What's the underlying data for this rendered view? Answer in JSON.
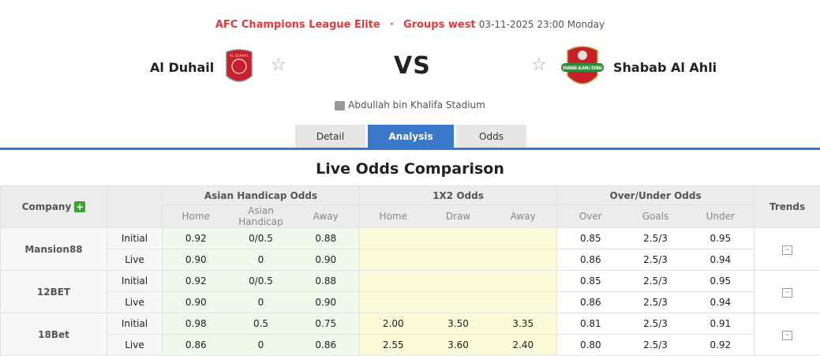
{
  "header": {
    "league": "AFC Champions League Elite",
    "separator": "·",
    "stage": "Groups west",
    "datetime": "03-11-2025 23:00 Monday",
    "home_team": "Al Duhail",
    "away_team": "Shabab Al Ahli",
    "vs": "VS",
    "venue": "Abdullah bin Khalifa Stadium",
    "home_logo_text": "AL DUHAIL",
    "away_logo_text": "SHABAB ALAHLI DUBAI"
  },
  "tabs": [
    {
      "label": "Detail"
    },
    {
      "label": "Analysis",
      "active": true
    },
    {
      "label": "Odds"
    }
  ],
  "section_title": "Live Odds Comparison",
  "table": {
    "company_header": "Company",
    "trends_header": "Trends",
    "groups": [
      "Asian Handicap Odds",
      "1X2 Odds",
      "Over/Under Odds"
    ],
    "subheaders": [
      "Home",
      "Asian Handicap",
      "Away",
      "Home",
      "Draw",
      "Away",
      "Over",
      "Goals",
      "Under"
    ],
    "rows": [
      {
        "company": "Mansion88",
        "lines": [
          {
            "type": "Initial",
            "values": [
              "0.92",
              "0/0.5",
              "0.88",
              "",
              "",
              "",
              "0.85",
              "2.5/3",
              "0.95"
            ]
          },
          {
            "type": "Live",
            "values": [
              "0.90",
              "0",
              "0.90",
              "",
              "",
              "",
              "0.86",
              "2.5/3",
              "0.94"
            ]
          }
        ]
      },
      {
        "company": "12BET",
        "lines": [
          {
            "type": "Initial",
            "values": [
              "0.92",
              "0/0.5",
              "0.88",
              "",
              "",
              "",
              "0.85",
              "2.5/3",
              "0.95"
            ]
          },
          {
            "type": "Live",
            "values": [
              "0.90",
              "0",
              "0.90",
              "",
              "",
              "",
              "0.86",
              "2.5/3",
              "0.94"
            ]
          }
        ]
      },
      {
        "company": "18Bet",
        "lines": [
          {
            "type": "Initial",
            "values": [
              "0.98",
              "0.5",
              "0.75",
              "2.00",
              "3.50",
              "3.35",
              "0.81",
              "2.5/3",
              "0.91"
            ]
          },
          {
            "type": "Live",
            "values": [
              "0.86",
              "0",
              "0.86",
              "2.55",
              "3.60",
              "2.40",
              "0.80",
              "2.5/3",
              "0.92"
            ]
          }
        ]
      }
    ]
  },
  "colors": {
    "accent": "#3a78c9",
    "league": "#e0393e",
    "ah_bg": "#eff9ec",
    "x12_bg": "#fcfbd9"
  }
}
